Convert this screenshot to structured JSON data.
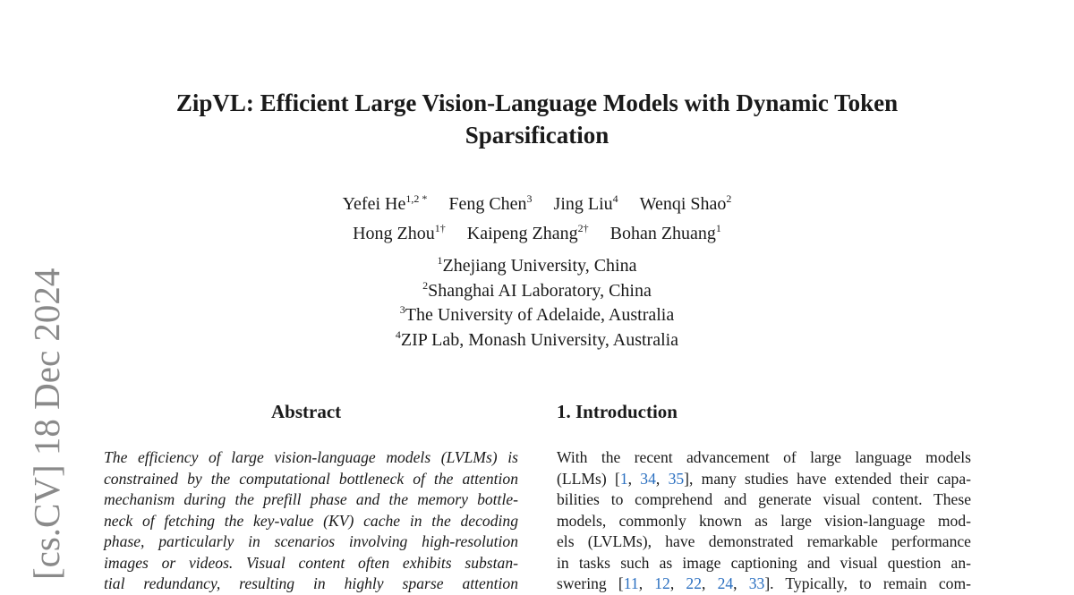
{
  "title": [
    "ZipVL: Efficient Large Vision-Language Models with Dynamic Token",
    "Sparsification"
  ],
  "authors_row1": [
    {
      "name": "Yefei He",
      "sup": "1,2 *"
    },
    {
      "name": "Feng Chen",
      "sup": "3"
    },
    {
      "name": "Jing Liu",
      "sup": "4"
    },
    {
      "name": "Wenqi Shao",
      "sup": "2"
    }
  ],
  "authors_row2": [
    {
      "name": "Hong Zhou",
      "sup": "1†"
    },
    {
      "name": "Kaipeng Zhang",
      "sup": "2†"
    },
    {
      "name": "Bohan Zhuang",
      "sup": "1"
    }
  ],
  "affiliations": [
    {
      "sup": "1",
      "text": "Zhejiang University, China"
    },
    {
      "sup": "2",
      "text": "Shanghai AI Laboratory, China"
    },
    {
      "sup": "3",
      "text": "The University of Adelaide, Australia"
    },
    {
      "sup": "4",
      "text": "ZIP Lab, Monash University, Australia"
    }
  ],
  "arxiv_stamp": "[cs.CV]  18 Dec 2024",
  "abstract": {
    "heading": "Abstract",
    "lines": [
      "The efficiency of large vision-language models (LVLMs) is",
      "constrained by the computational bottleneck of the attention",
      "mechanism during the prefill phase and the memory bottle-",
      "neck of fetching the key-value (KV) cache in the decoding",
      "phase, particularly in scenarios involving high-resolution",
      "images or videos.  Visual content often exhibits substan-",
      "tial redundancy, resulting in highly sparse attention"
    ]
  },
  "introduction": {
    "heading": "1. Introduction",
    "lines": [
      [
        "With the recent advancement of large language models"
      ],
      [
        "(LLMs) [",
        {
          "cite": "1"
        },
        ", ",
        {
          "cite": "34"
        },
        ", ",
        {
          "cite": "35"
        },
        "], many studies have extended their capa-"
      ],
      [
        "bilities to comprehend and generate visual content.  These"
      ],
      [
        "models, commonly known as large vision-language mod-"
      ],
      [
        "els (LVLMs), have demonstrated remarkable performance"
      ],
      [
        "in tasks such as image captioning and visual question an-"
      ],
      [
        "swering [",
        {
          "cite": "11"
        },
        ", ",
        {
          "cite": "12"
        },
        ", ",
        {
          "cite": "22"
        },
        ", ",
        {
          "cite": "24"
        },
        ", ",
        {
          "cite": "33"
        },
        "].  Typically, to remain com-"
      ]
    ]
  },
  "colors": {
    "citation": "#2a6fc0",
    "stamp": "#8a8a8a"
  }
}
